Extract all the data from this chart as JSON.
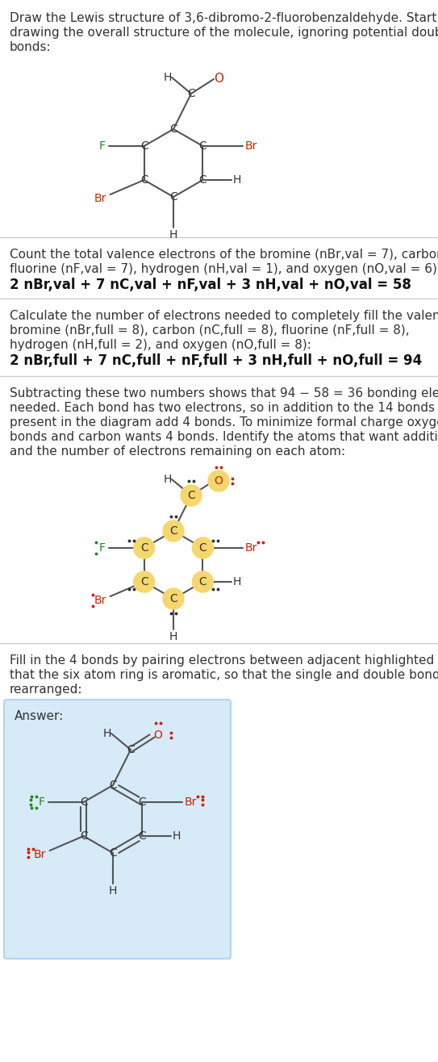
{
  "bg_color": "#ffffff",
  "text_color": "#333333",
  "atom_C_color": "#333333",
  "atom_O_color": "#cc2200",
  "atom_F_color": "#228822",
  "atom_Br_color": "#cc2200",
  "atom_H_color": "#333333",
  "highlight_color": "#f5d76e",
  "answer_bg": "#d6eaf8",
  "answer_border": "#aed6f1",
  "bond_color": "#555555",
  "sep_color": "#cccccc",
  "ring_r": 42,
  "angles_deg": [
    90,
    30,
    -30,
    -90,
    -150,
    150
  ]
}
